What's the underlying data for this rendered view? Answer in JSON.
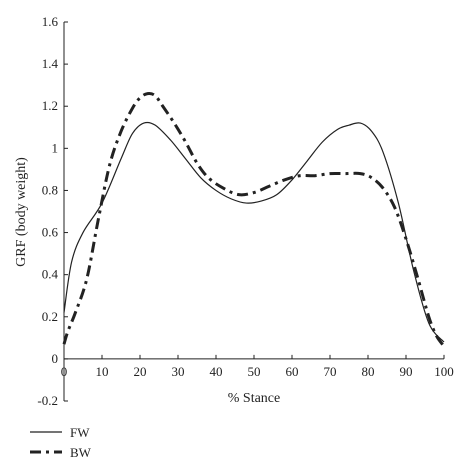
{
  "chart_data": {
    "type": "line",
    "xlabel": "% Stance",
    "ylabel": "GRF (body weight)",
    "xlim": [
      0,
      100
    ],
    "ylim": [
      -0.2,
      1.6
    ],
    "x_ticks": [
      0,
      10,
      20,
      30,
      40,
      50,
      60,
      70,
      80,
      90,
      100
    ],
    "y_ticks": [
      -0.2,
      0,
      0.2,
      0.4,
      0.6,
      0.8,
      1,
      1.2,
      1.4,
      1.6
    ],
    "y_tick_labels": [
      "-0.2",
      "0",
      "0.2",
      "0.4",
      "0.6",
      "0.8",
      "1",
      "1.2",
      "1.4",
      "1.6"
    ],
    "grid": false,
    "legend_position": "bottom-left",
    "series": [
      {
        "name": "FW",
        "style": "solid",
        "color": "#222222",
        "x": [
          0,
          2,
          5,
          10,
          15,
          18,
          21,
          24,
          28,
          32,
          36,
          40,
          44,
          48,
          52,
          56,
          60,
          64,
          68,
          72,
          75,
          78,
          81,
          84,
          88,
          92,
          96,
          100
        ],
        "y": [
          0.22,
          0.46,
          0.6,
          0.74,
          0.95,
          1.07,
          1.12,
          1.11,
          1.04,
          0.95,
          0.86,
          0.8,
          0.76,
          0.74,
          0.75,
          0.78,
          0.85,
          0.94,
          1.03,
          1.09,
          1.11,
          1.12,
          1.08,
          0.98,
          0.74,
          0.42,
          0.17,
          0.08
        ]
      },
      {
        "name": "BW",
        "style": "dash-dot",
        "color": "#222222",
        "x": [
          0,
          1,
          3,
          6,
          9,
          12,
          15,
          18,
          20,
          22,
          24,
          26,
          29,
          32,
          35,
          38,
          42,
          46,
          50,
          54,
          58,
          62,
          66,
          70,
          74,
          78,
          81,
          84,
          87,
          90,
          93,
          96,
          98,
          100
        ],
        "y": [
          0.07,
          0.13,
          0.22,
          0.38,
          0.66,
          0.92,
          1.08,
          1.19,
          1.24,
          1.26,
          1.25,
          1.2,
          1.12,
          1.03,
          0.93,
          0.86,
          0.81,
          0.78,
          0.79,
          0.82,
          0.85,
          0.87,
          0.87,
          0.88,
          0.88,
          0.88,
          0.86,
          0.81,
          0.72,
          0.57,
          0.39,
          0.2,
          0.11,
          0.06
        ]
      }
    ]
  }
}
